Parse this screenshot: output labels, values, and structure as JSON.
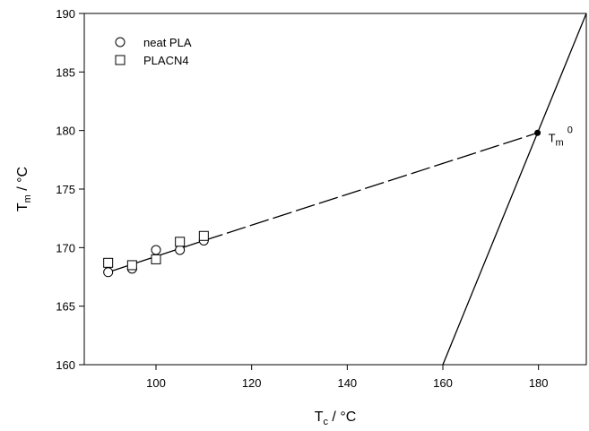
{
  "chart_data": {
    "type": "scatter",
    "x_label": {
      "main": "T",
      "sub": "c",
      "unit": " / °C"
    },
    "y_label": {
      "main": "T",
      "sub": "m",
      "unit": " / °C"
    },
    "xlim": [
      85,
      190
    ],
    "xticks": [
      100,
      120,
      140,
      160,
      180
    ],
    "ylim": [
      160,
      190
    ],
    "yticks": [
      160,
      165,
      170,
      175,
      180,
      185,
      190
    ],
    "series": [
      {
        "name": "neat PLA",
        "marker": "circle",
        "color": "#000000",
        "x": [
          90,
          95,
          100,
          105,
          110
        ],
        "values": [
          167.9,
          168.2,
          169.8,
          169.8,
          170.6
        ]
      },
      {
        "name": "PLACN4",
        "marker": "square",
        "color": "#000000",
        "x": [
          90,
          95,
          100,
          105,
          110
        ],
        "values": [
          168.7,
          168.5,
          169.0,
          170.5,
          171.0
        ]
      }
    ],
    "lines": [
      {
        "dash": false,
        "color": "#000000",
        "x": [
          90,
          110
        ],
        "values": [
          167.9,
          170.6
        ]
      },
      {
        "dash": true,
        "color": "#000000",
        "x": [
          110,
          179.8
        ],
        "values": [
          170.6,
          179.8
        ]
      },
      {
        "dash": false,
        "color": "#000000",
        "x": [
          160,
          190
        ],
        "values": [
          160,
          190
        ]
      }
    ],
    "point": {
      "x": 179.8,
      "y": 179.8,
      "label": {
        "main": "T",
        "sub": "m",
        "sup": "0"
      }
    }
  }
}
